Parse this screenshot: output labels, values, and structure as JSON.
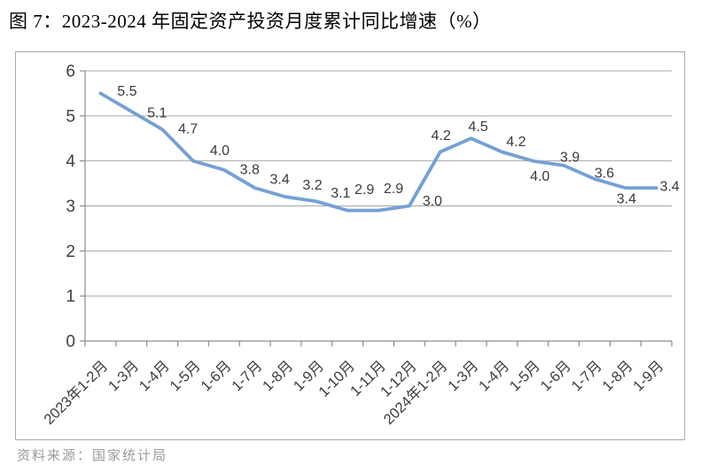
{
  "header": {
    "title": "图 7：2023-2024 年固定资产投资月度累计同比增速（%）"
  },
  "footer": {
    "source": "资料来源：国家统计局"
  },
  "chart_data": {
    "type": "line",
    "title": "2023-2024 年固定资产投资月度累计同比增速（%）",
    "categories": [
      "2023年1-2月",
      "1-3月",
      "1-4月",
      "1-5月",
      "1-6月",
      "1-7月",
      "1-8月",
      "1-9月",
      "1-10月",
      "1-11月",
      "1-12月",
      "2024年1-2月",
      "1-3月",
      "1-4月",
      "1-5月",
      "1-6月",
      "1-7月",
      "1-8月",
      "1-9月"
    ],
    "values": [
      5.5,
      5.1,
      4.7,
      4.0,
      3.8,
      3.4,
      3.2,
      3.1,
      2.9,
      2.9,
      3.0,
      4.2,
      4.5,
      4.2,
      4.0,
      3.9,
      3.6,
      3.4,
      3.4
    ],
    "xlabel": "",
    "ylabel": "",
    "ylim": [
      0,
      6
    ],
    "yticks": [
      0,
      1,
      2,
      3,
      4,
      5,
      6
    ],
    "grid": "horizontal",
    "legend": "none",
    "data_labels": true,
    "label_decimals": 1,
    "colors": {
      "line": "#74a1d4",
      "grid": "#a8a8a8",
      "axis": "#8c8c8c",
      "axis_text": "#404040",
      "data_label_text": "#3a3a3a",
      "frame_border": "#ababab"
    }
  }
}
